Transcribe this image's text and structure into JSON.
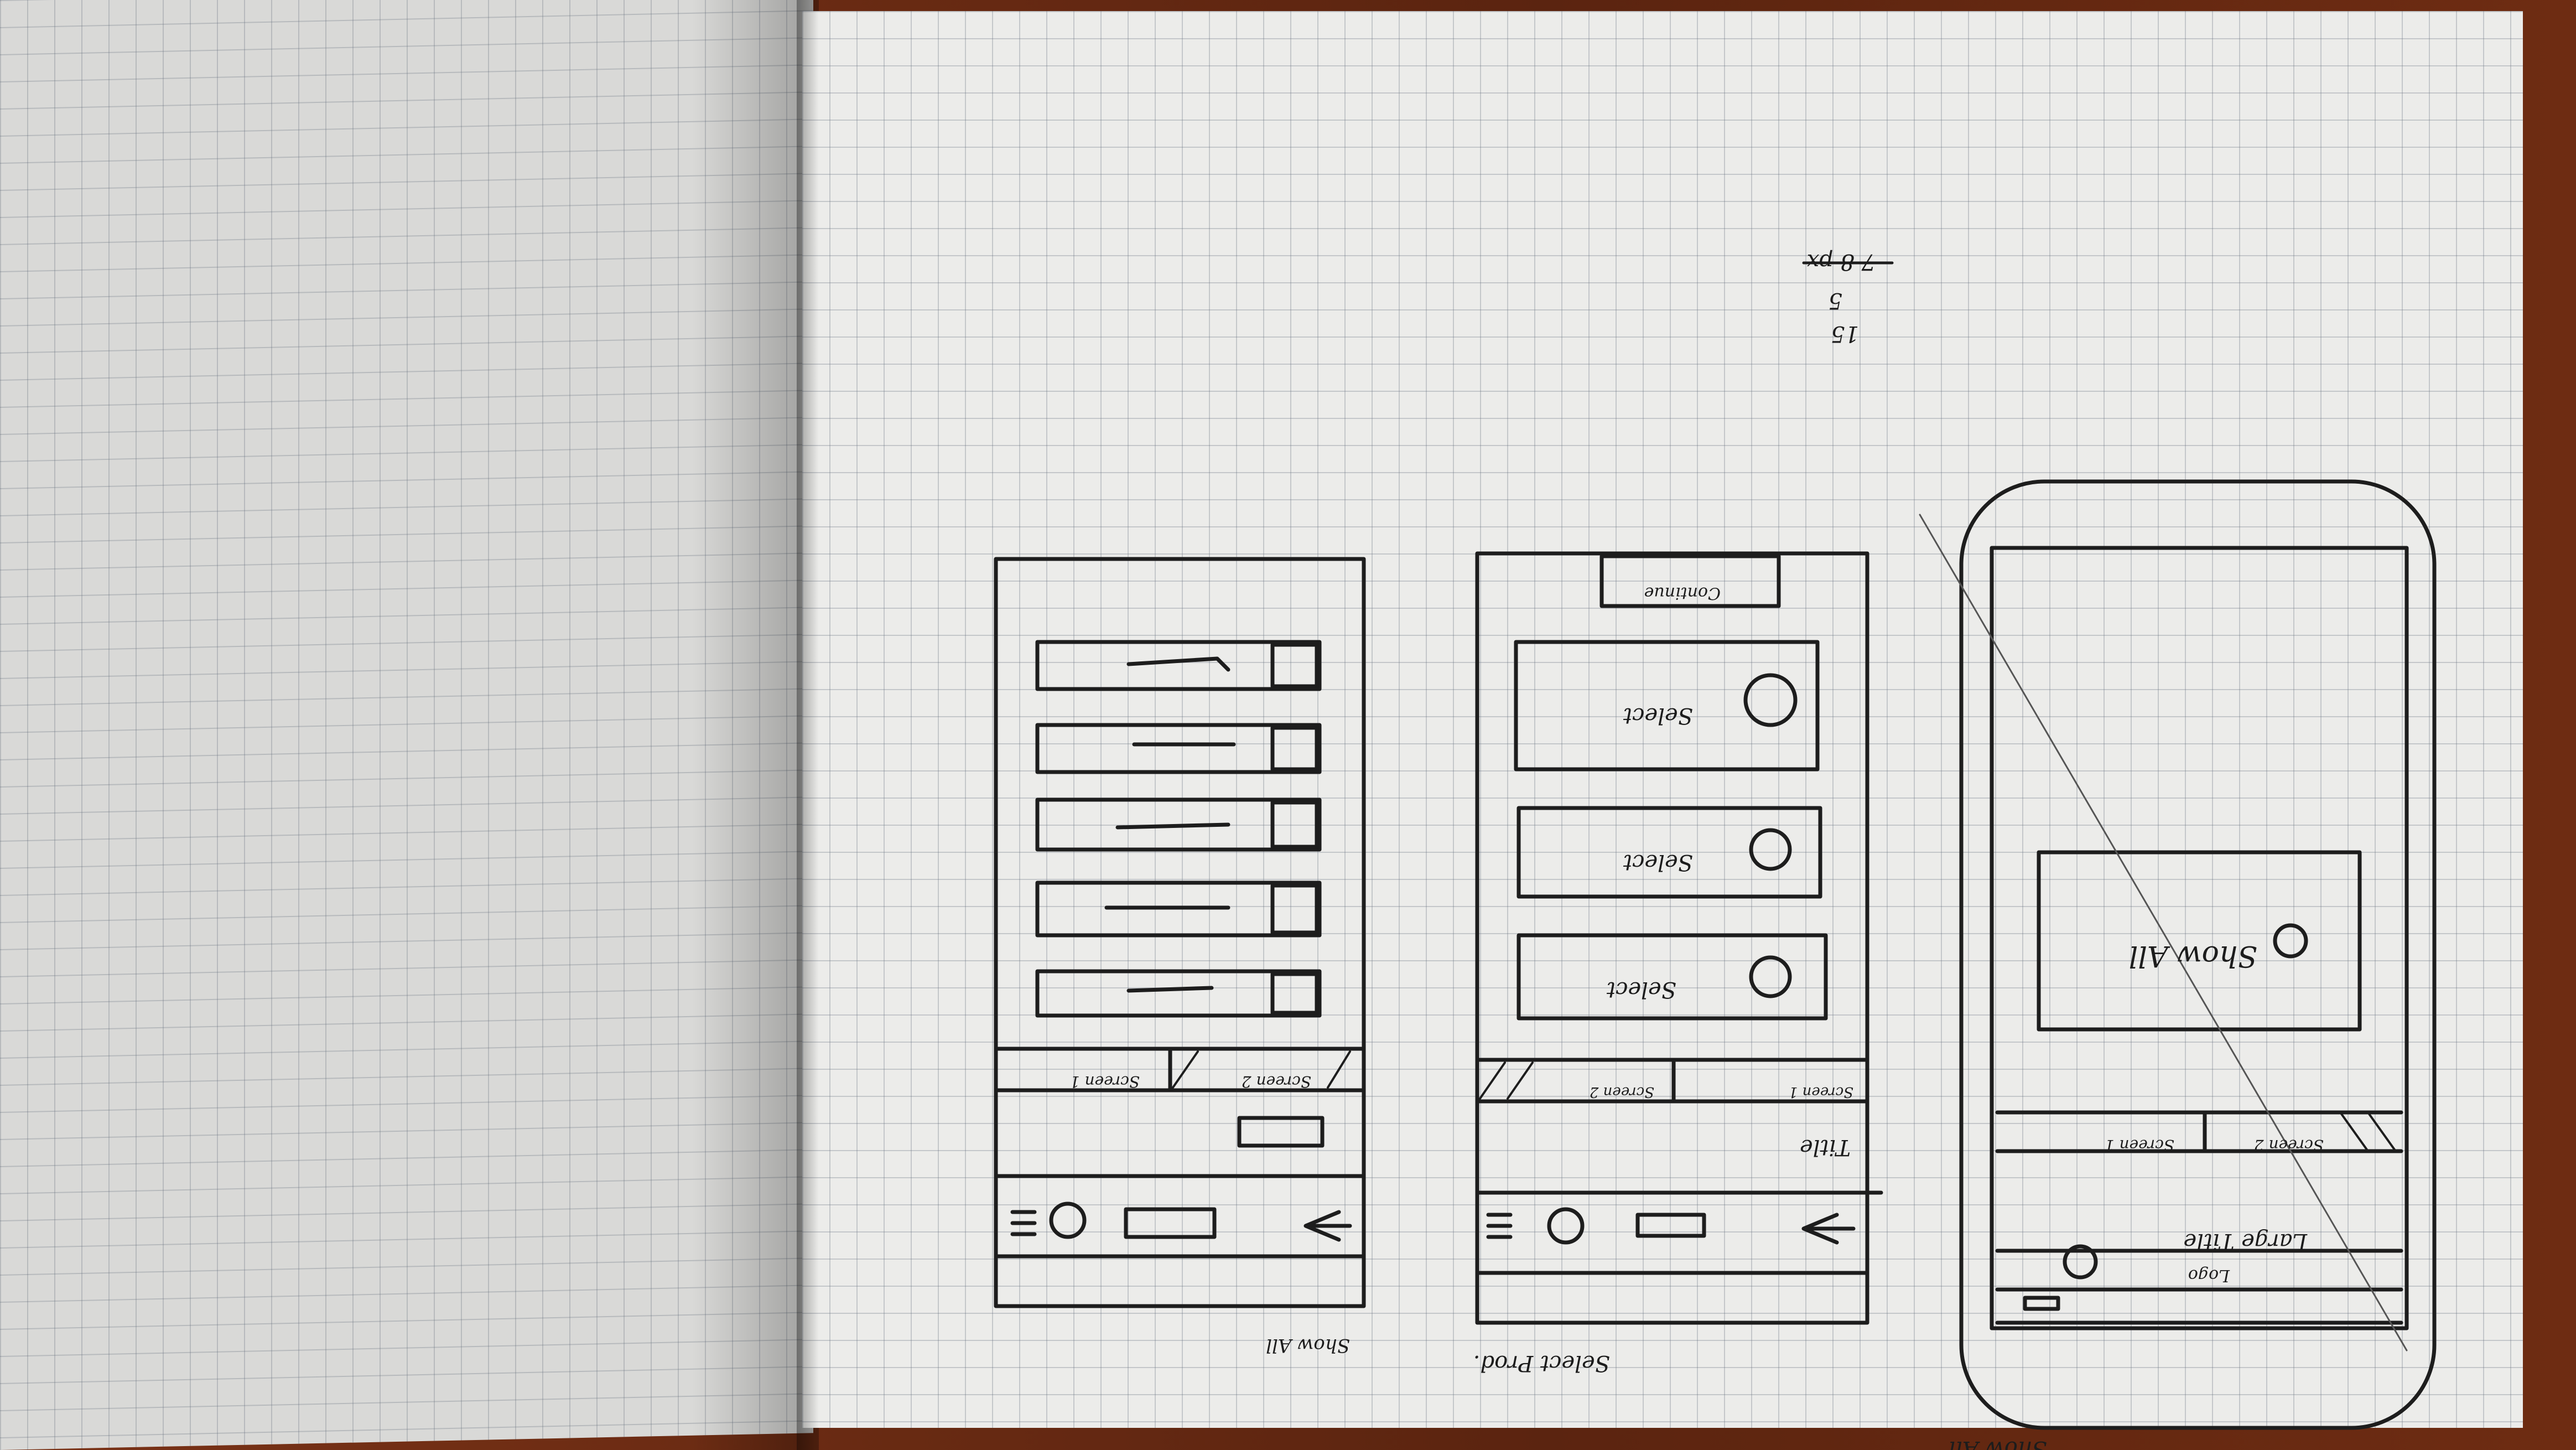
{
  "notes": {
    "top_a": "15",
    "top_b": "5",
    "top_c": "7 8 px"
  },
  "sketch_show_all_phone": {
    "caption": "Show All",
    "nav": {
      "logo": "Logo"
    },
    "large_title": "Large Title",
    "tabs": [
      "Screen 1",
      "Screen 2"
    ],
    "card_label": "Show All"
  },
  "sketch_select_prod": {
    "caption": "Select Prod.",
    "title": "Title",
    "tabs": [
      "Screen 1",
      "Screen 2"
    ],
    "items": [
      "Select",
      "Select",
      "Select"
    ],
    "button": "Continue"
  },
  "sketch_show_all_list": {
    "caption": "Show All",
    "tabs": [
      "Screen 1",
      "Screen 2"
    ]
  }
}
